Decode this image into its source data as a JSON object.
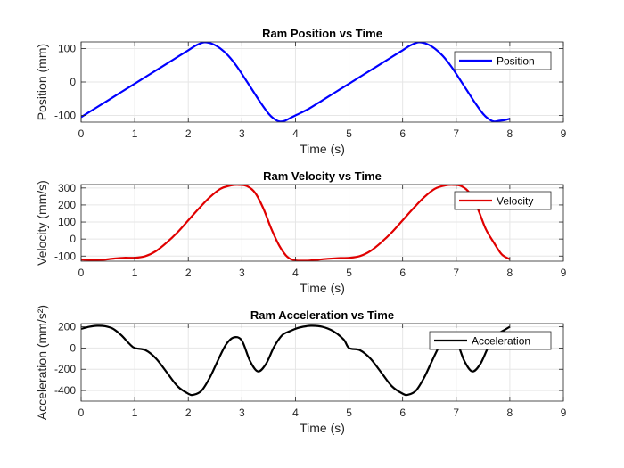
{
  "figure": {
    "background": "#ffffff"
  },
  "chart_data": [
    {
      "type": "line",
      "title": "Ram Position vs Time",
      "xlabel": "Time (s)",
      "ylabel": "Position (mm)",
      "xlim": [
        0,
        9
      ],
      "ylim": [
        -120,
        120
      ],
      "xticks": [
        0,
        1,
        2,
        3,
        4,
        5,
        6,
        7,
        8,
        9
      ],
      "yticks": [
        -100,
        0,
        100
      ],
      "grid": true,
      "legend_location": "top-right",
      "series": [
        {
          "name": "Position",
          "color": "#0000ff",
          "x": [
            0,
            0.25,
            0.5,
            0.75,
            1,
            1.25,
            1.5,
            1.75,
            2,
            2.15,
            2.3,
            2.45,
            2.6,
            2.75,
            2.9,
            3.05,
            3.2,
            3.35,
            3.5,
            3.6,
            3.7,
            3.8,
            3.9,
            4,
            4.25,
            4.5,
            4.75,
            5,
            5.25,
            5.5,
            5.75,
            6,
            6.15,
            6.3,
            6.45,
            6.6,
            6.75,
            6.9,
            7.05,
            7.2,
            7.35,
            7.5,
            7.6,
            7.7,
            7.8,
            7.9,
            8
          ],
          "y": [
            -105,
            -80,
            -55,
            -30,
            -5,
            20,
            45,
            70,
            95,
            110,
            119,
            114,
            100,
            78,
            48,
            12,
            -25,
            -62,
            -95,
            -110,
            -118,
            -116,
            -108,
            -100,
            -80,
            -55,
            -30,
            -5,
            20,
            45,
            70,
            95,
            110,
            119,
            114,
            100,
            78,
            48,
            12,
            -25,
            -62,
            -95,
            -110,
            -118,
            -116,
            -114,
            -110
          ]
        }
      ]
    },
    {
      "type": "line",
      "title": "Ram Velocity vs Time",
      "xlabel": "Time (s)",
      "ylabel": "Velocity (mm/s)",
      "xlim": [
        0,
        9
      ],
      "ylim": [
        -130,
        320
      ],
      "xticks": [
        0,
        1,
        2,
        3,
        4,
        5,
        6,
        7,
        8,
        9
      ],
      "yticks": [
        -100,
        0,
        100,
        200,
        300
      ],
      "grid": true,
      "legend_location": "top-right",
      "series": [
        {
          "name": "Velocity",
          "color": "#e00000",
          "x": [
            0,
            0.2,
            0.4,
            0.6,
            0.8,
            1,
            1.2,
            1.4,
            1.6,
            1.8,
            2,
            2.2,
            2.4,
            2.6,
            2.8,
            2.95,
            3.1,
            3.25,
            3.4,
            3.55,
            3.7,
            3.85,
            4,
            4.2,
            4.4,
            4.6,
            4.8,
            5,
            5.2,
            5.4,
            5.6,
            5.8,
            6,
            6.2,
            6.4,
            6.6,
            6.8,
            6.95,
            7.1,
            7.25,
            7.4,
            7.55,
            7.7,
            7.85,
            8
          ],
          "y": [
            -120,
            -125,
            -122,
            -115,
            -110,
            -110,
            -100,
            -70,
            -20,
            40,
            110,
            180,
            245,
            295,
            315,
            318,
            310,
            270,
            180,
            60,
            -40,
            -105,
            -125,
            -127,
            -122,
            -116,
            -112,
            -110,
            -100,
            -70,
            -20,
            40,
            110,
            180,
            245,
            295,
            315,
            318,
            310,
            270,
            180,
            60,
            -20,
            -90,
            -118
          ]
        }
      ]
    },
    {
      "type": "line",
      "title": "Ram Acceleration vs Time",
      "xlabel": "Time (s)",
      "ylabel": "Acceleration (mm/s²)",
      "xlim": [
        0,
        9
      ],
      "ylim": [
        -500,
        230
      ],
      "xticks": [
        0,
        1,
        2,
        3,
        4,
        5,
        6,
        7,
        8,
        9
      ],
      "yticks": [
        -400,
        -200,
        0,
        200
      ],
      "grid": true,
      "legend_location": "top-right",
      "series": [
        {
          "name": "Acceleration",
          "color": "#000000",
          "x": [
            0,
            0.15,
            0.3,
            0.45,
            0.6,
            0.75,
            0.9,
            1,
            1.2,
            1.4,
            1.6,
            1.8,
            2,
            2.1,
            2.25,
            2.4,
            2.55,
            2.7,
            2.85,
            3,
            3.15,
            3.3,
            3.45,
            3.6,
            3.75,
            3.9,
            4.05,
            4.2,
            4.3,
            4.5,
            4.7,
            4.9,
            5,
            5.2,
            5.4,
            5.6,
            5.8,
            6,
            6.1,
            6.25,
            6.4,
            6.55,
            6.7,
            6.85,
            7,
            7.15,
            7.3,
            7.45,
            7.6,
            7.75,
            7.9,
            8
          ],
          "y": [
            180,
            200,
            210,
            205,
            180,
            120,
            40,
            0,
            -20,
            -100,
            -230,
            -360,
            -430,
            -440,
            -400,
            -280,
            -120,
            30,
            100,
            70,
            -120,
            -220,
            -150,
            10,
            120,
            160,
            190,
            205,
            210,
            200,
            160,
            80,
            0,
            -20,
            -100,
            -230,
            -360,
            -430,
            -440,
            -400,
            -280,
            -120,
            30,
            100,
            70,
            -120,
            -220,
            -150,
            10,
            120,
            170,
            200
          ]
        }
      ]
    }
  ]
}
